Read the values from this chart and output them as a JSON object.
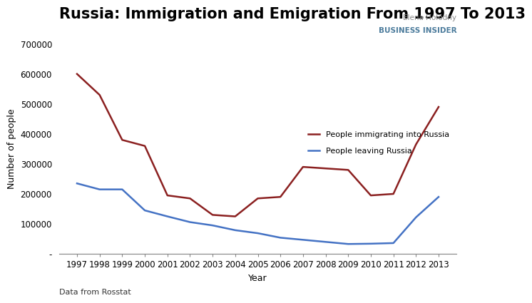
{
  "title": "Russia: Immigration and Emigration From 1997 To 2013",
  "xlabel": "Year",
  "ylabel": "Number of people",
  "source_text": "Data from Rosstat",
  "attribution_line1": "Elena Holodny",
  "attribution_line2": "BUSINESS INSIDER",
  "years": [
    1997,
    1998,
    1999,
    2000,
    2001,
    2002,
    2003,
    2004,
    2005,
    2006,
    2007,
    2008,
    2009,
    2010,
    2011,
    2012,
    2013
  ],
  "immigration": [
    600000,
    530000,
    380000,
    360000,
    195000,
    185000,
    130000,
    125000,
    185000,
    190000,
    290000,
    285000,
    280000,
    195000,
    200000,
    365000,
    490000
  ],
  "emigration": [
    235000,
    215000,
    215000,
    145000,
    125000,
    106000,
    95000,
    79000,
    69000,
    54000,
    47000,
    40000,
    33000,
    34000,
    36000,
    122000,
    190000
  ],
  "immigration_color": "#8B2020",
  "emigration_color": "#4472C4",
  "background_color": "#FFFFFF",
  "ylim": [
    0,
    700000
  ],
  "yticks": [
    0,
    100000,
    200000,
    300000,
    400000,
    500000,
    600000,
    700000
  ],
  "ytick_labels": [
    "-",
    "100000",
    "200000",
    "300000",
    "400000",
    "500000",
    "600000",
    "700000"
  ],
  "legend_immigration": "People immigrating into Russia",
  "legend_emigration": "People leaving Russia",
  "title_fontsize": 15,
  "axis_fontsize": 9,
  "tick_fontsize": 8.5
}
